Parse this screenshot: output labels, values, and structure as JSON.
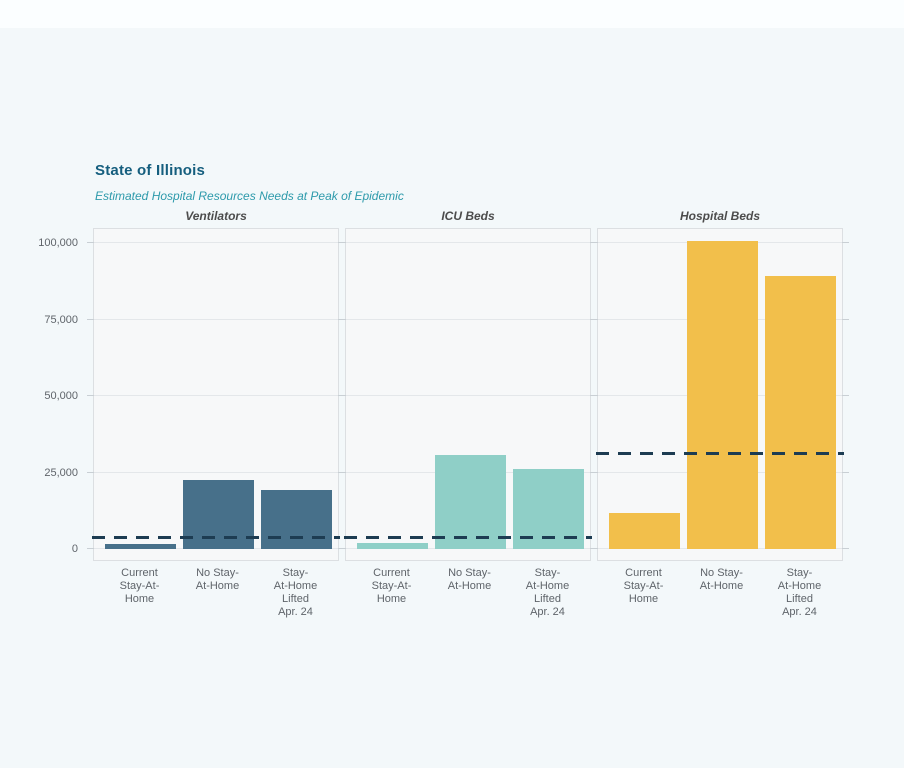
{
  "chart_data": {
    "type": "bar",
    "title": "State of Illinois",
    "subtitle": "Estimated Hospital Resources Needs at Peak of Epidemic",
    "categories": [
      "Current\nStay-At-\nHome",
      "No Stay-\nAt-Home",
      "Stay-\nAt-Home\nLifted\nApr. 24"
    ],
    "y_ticks": [
      0,
      25000,
      50000,
      75000,
      100000
    ],
    "ylim": [
      0,
      105000
    ],
    "grid": "horizontal",
    "legend": "none",
    "capacity_line_color": "#1d3c52",
    "panels": [
      {
        "label": "Ventilators",
        "bar_color": "#47708a",
        "values": [
          1600,
          22400,
          19200
        ],
        "capacity_line": 3600
      },
      {
        "label": "ICU Beds",
        "bar_color": "#8fcfc7",
        "values": [
          2100,
          30600,
          26200
        ],
        "capacity_line": 3600
      },
      {
        "label": "Hospital Beds",
        "bar_color": "#f2bf4b",
        "values": [
          11800,
          100700,
          89200
        ],
        "capacity_line": 31200
      }
    ],
    "colors": {
      "title": "#155e7e",
      "subtitle": "#2d9aab",
      "panel_bg": "#f7f8f9",
      "panel_border": "#dcdfe2",
      "gridline": "#e4e7ea",
      "axis_text": "#5f646a"
    }
  }
}
